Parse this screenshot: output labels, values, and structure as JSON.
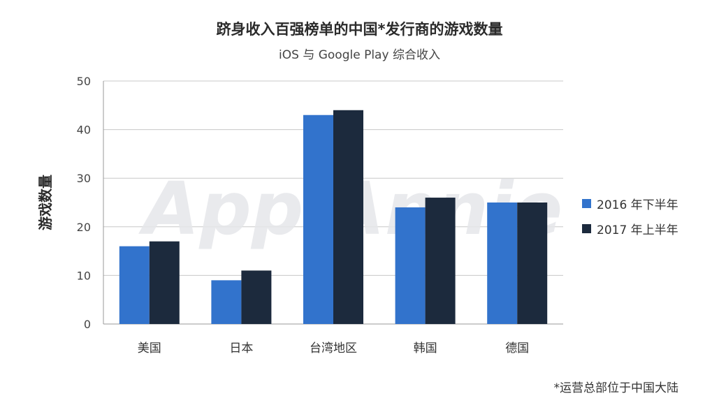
{
  "chart_data": {
    "type": "bar",
    "title": "跻身收入百强榜单的中国*发行商的游戏数量",
    "subtitle": "iOS 与 Google Play 综合收入",
    "ylabel": "游戏数量",
    "xlabel": "",
    "ylim": [
      0,
      50
    ],
    "yticks": [
      0,
      10,
      20,
      30,
      40,
      50
    ],
    "grid": true,
    "legend_position": "right",
    "categories": [
      "美国",
      "日本",
      "台湾地区",
      "韩国",
      "德国"
    ],
    "series": [
      {
        "name": "2016 年下半年",
        "color": "#3273cc",
        "values": [
          16,
          9,
          43,
          24,
          25
        ]
      },
      {
        "name": "2017 年上半年",
        "color": "#1c2a3d",
        "values": [
          17,
          11,
          44,
          26,
          25
        ]
      }
    ],
    "watermark": "App Annie",
    "footnote": "*运营总部位于中国大陆"
  }
}
